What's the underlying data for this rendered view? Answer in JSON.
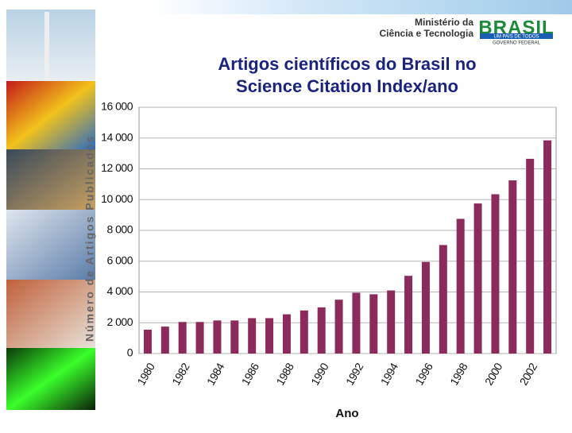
{
  "header": {
    "ministry": [
      "Ministério da",
      "Ciência e Tecnologia"
    ],
    "brand": "BRASIL",
    "slogan": "UM PAÍS DE TODOS",
    "government": "GOVERNO FEDERAL"
  },
  "chart_data": {
    "type": "bar",
    "title": [
      "Artigos científicos do Brasil no",
      "Science Citation Index/ano"
    ],
    "x_label": "Ano",
    "y_label": "Número de Artigos Publicados",
    "categories": [
      "1980",
      null,
      "1982",
      null,
      "1984",
      null,
      "1986",
      null,
      "1988",
      null,
      "1990",
      null,
      "1992",
      null,
      "1994",
      null,
      "1996",
      null,
      "1998",
      null,
      "2000",
      null,
      "2002",
      null
    ],
    "values": [
      1550,
      1750,
      2050,
      2050,
      2150,
      2150,
      2300,
      2300,
      2550,
      2800,
      3000,
      3500,
      3950,
      3850,
      4100,
      5050,
      5950,
      7050,
      8750,
      9750,
      10350,
      11250,
      12650,
      13850
    ],
    "color": "#8c2a5c",
    "ylim": [
      0,
      16000
    ],
    "yticks": [
      0,
      {
        "value": 2000,
        "label": "2 000"
      },
      {
        "value": 4000,
        "label": "4 000"
      },
      {
        "value": 6000,
        "label": "6 000"
      },
      {
        "value": 8000,
        "label": "8 000"
      },
      {
        "value": 10000,
        "label": "10 000"
      },
      {
        "value": 12000,
        "label": "12 000"
      },
      {
        "value": 14000,
        "label": "14 000"
      },
      {
        "value": 16000,
        "label": "16 000"
      }
    ],
    "grid": true
  }
}
